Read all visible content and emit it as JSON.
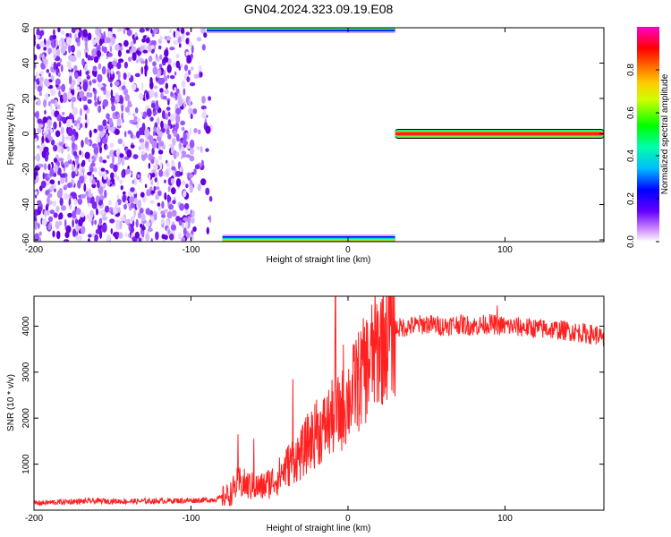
{
  "title": "GN04.2024.323.09.19.E08",
  "chart_data": [
    {
      "type": "heatmap",
      "title": "GN04.2024.323.09.19.E08",
      "xlabel": "Height of straight line (km)",
      "ylabel": "Frequency (Hz)",
      "xlim": [
        -200,
        163
      ],
      "ylim": [
        -61,
        60
      ],
      "x_ticks": [
        -200,
        -100,
        0,
        100
      ],
      "x_tick_labels": [
        "-200",
        "-100",
        "0",
        "100"
      ],
      "y_ticks": [
        -60,
        -40,
        -20,
        0,
        20,
        40,
        60
      ],
      "y_tick_labels": [
        "-60",
        "-40",
        "-20",
        "0",
        "20",
        "40",
        "60"
      ],
      "colorbar": {
        "label": "Normalized spectral amplitude",
        "range": [
          0,
          1
        ],
        "ticks": [
          0.0,
          0.2,
          0.4,
          0.6,
          0.8
        ],
        "tick_labels": [
          "0.0",
          "0.2",
          "0.4",
          "0.6",
          "0.8"
        ],
        "colors": [
          "#ffffff",
          "#8800ff",
          "#0000ff",
          "#00ccff",
          "#00ff00",
          "#ffff00",
          "#ff8800",
          "#ff0000",
          "#ff00cc"
        ]
      },
      "features": {
        "dense_region_x_range": [
          -200,
          -87
        ],
        "upper_band": {
          "x_range": [
            -90,
            30
          ],
          "freq": 60
        },
        "lower_band": {
          "x_range": [
            -80,
            30
          ],
          "freq": -60
        },
        "zero_freq_line": {
          "x_range": [
            30,
            163
          ],
          "freq": 0
        }
      }
    },
    {
      "type": "line",
      "xlabel": "Height of straight line (km)",
      "ylabel": "SNR (10 * v/v)",
      "xlim": [
        -200,
        163
      ],
      "ylim": [
        0,
        4650
      ],
      "x_ticks": [
        -200,
        -100,
        0,
        100
      ],
      "x_tick_labels": [
        "-200",
        "-100",
        "0",
        "100"
      ],
      "y_ticks": [
        1000,
        2000,
        3000,
        4000
      ],
      "y_tick_labels": [
        "1000",
        "2000",
        "3000",
        "4000"
      ],
      "series_color": "#ff2020",
      "x": [
        -200,
        -180,
        -160,
        -140,
        -120,
        -100,
        -90,
        -85,
        -80,
        -75,
        -70,
        -65,
        -60,
        -55,
        -50,
        -45,
        -40,
        -35,
        -30,
        -25,
        -20,
        -15,
        -10,
        -5,
        0,
        5,
        10,
        15,
        20,
        25,
        30,
        40,
        50,
        60,
        70,
        80,
        90,
        100,
        110,
        120,
        130,
        140,
        150,
        160,
        163
      ],
      "y": [
        150,
        180,
        200,
        190,
        200,
        210,
        220,
        230,
        280,
        350,
        600,
        550,
        500,
        500,
        600,
        700,
        900,
        1100,
        1200,
        1500,
        1650,
        1800,
        2000,
        2100,
        2400,
        2700,
        3000,
        3300,
        3600,
        3850,
        3950,
        4000,
        4050,
        4000,
        4050,
        4000,
        4050,
        4000,
        3980,
        3950,
        3930,
        3900,
        3850,
        3800,
        3650
      ],
      "spikes": [
        [
          -70,
          1650
        ],
        [
          -60,
          1550
        ],
        [
          -35,
          2850
        ],
        [
          -20,
          2400
        ],
        [
          -8,
          4650
        ],
        [
          -3,
          3600
        ],
        [
          5,
          3700
        ],
        [
          10,
          3500
        ],
        [
          95,
          4450
        ]
      ]
    }
  ]
}
